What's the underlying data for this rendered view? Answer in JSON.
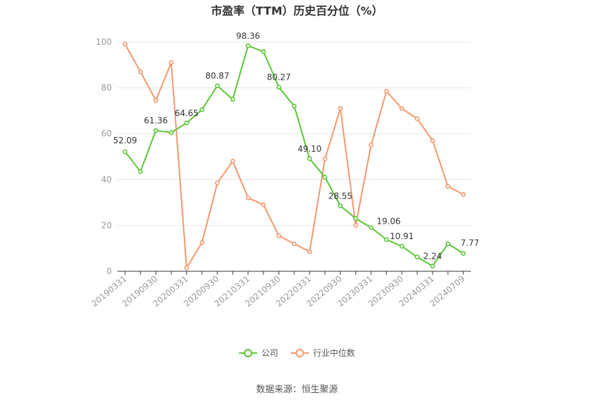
{
  "chart_data": {
    "type": "line",
    "title": "市盈率（TTM）历史百分位（%）",
    "ylim": [
      0,
      100
    ],
    "yticks": [
      0,
      20,
      40,
      60,
      80,
      100
    ],
    "x": [
      "20190331",
      "20190630",
      "20190930",
      "20191231",
      "20200331",
      "20200630",
      "20200930",
      "20201231",
      "20210331",
      "20210630",
      "20210930",
      "20211231",
      "20220331",
      "20220630",
      "20220930",
      "20221231",
      "20230331",
      "20230630",
      "20230930",
      "20231231",
      "20240331",
      "20240630",
      "20240709"
    ],
    "xtick_labels": [
      "20190331",
      "20190930",
      "20200331",
      "20200930",
      "20210331",
      "20210930",
      "20220331",
      "20220930",
      "20230331",
      "20230930",
      "20240331",
      "20240709"
    ],
    "series": [
      {
        "name": "公司",
        "color": "#5ac634",
        "values": [
          52.09,
          43.5,
          61.36,
          60.5,
          64.65,
          70.5,
          80.87,
          75.0,
          98.36,
          95.8,
          80.27,
          72.0,
          49.1,
          41.0,
          28.55,
          23.0,
          19.06,
          13.8,
          10.91,
          6.2,
          2.24,
          12.0,
          7.77
        ],
        "labels": [
          "52.09",
          "",
          "61.36",
          "",
          "64.65",
          "",
          "80.87",
          "",
          "98.36",
          "",
          "80.27",
          "",
          "49.10",
          "",
          "28.55",
          "",
          "19.06",
          "",
          "10.91",
          "",
          "2.24",
          "",
          "7.77"
        ]
      },
      {
        "name": "行业中位数",
        "color": "#f4976c",
        "values": [
          99.0,
          87.0,
          74.5,
          91.0,
          1.5,
          12.5,
          38.5,
          48.0,
          32.0,
          29.0,
          15.5,
          12.0,
          8.5,
          49.0,
          71.0,
          20.0,
          55.0,
          78.5,
          71.0,
          66.5,
          57.0,
          37.0,
          33.5
        ]
      }
    ],
    "legend_position": "bottom-center",
    "grid": true,
    "source": "数据来源：恒生聚源"
  }
}
